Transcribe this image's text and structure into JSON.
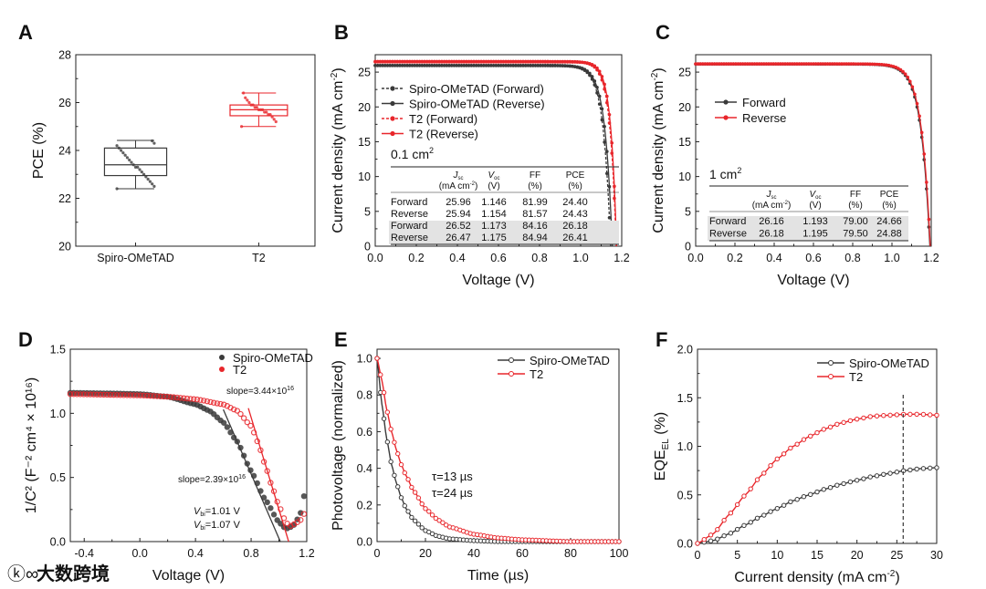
{
  "figure": {
    "watermark": "大数跨境"
  },
  "colors": {
    "black": "#3a3a3a",
    "red": "#e8262b",
    "gray_bg": "#e3e3e3"
  },
  "chart_data": [
    {
      "panel": "A",
      "type": "box",
      "ylabel": "PCE (%)",
      "xlabel": "",
      "ylim": [
        20,
        28
      ],
      "yticks": [
        "20",
        "22",
        "24",
        "26",
        "28"
      ],
      "categories": [
        "Spiro-OMeTAD",
        "T2"
      ],
      "boxes": [
        {
          "name": "Spiro-OMeTAD",
          "color": "#3a3a3a",
          "min": 22.4,
          "q1": 22.95,
          "median": 23.4,
          "q3": 24.1,
          "max": 24.42,
          "points": [
            22.4,
            22.5,
            22.6,
            22.7,
            22.8,
            22.9,
            23.0,
            23.1,
            23.2,
            23.3,
            23.3,
            23.4,
            23.5,
            23.6,
            23.7,
            23.8,
            23.9,
            24.0,
            24.1,
            24.2,
            24.3,
            24.4
          ]
        },
        {
          "name": "T2",
          "color": "#e8262b",
          "min": 25.0,
          "q1": 25.45,
          "median": 25.7,
          "q3": 25.9,
          "max": 26.4,
          "points": [
            25.0,
            25.2,
            25.3,
            25.4,
            25.5,
            25.5,
            25.6,
            25.6,
            25.7,
            25.7,
            25.7,
            25.8,
            25.8,
            25.9,
            25.9,
            26.0,
            26.1,
            26.2,
            26.4
          ]
        }
      ]
    },
    {
      "panel": "B",
      "type": "line",
      "xlabel": "Voltage (V)",
      "ylabel": "Current density (mA cm",
      "ylabel_sup": "-2",
      "ylabel_end": ")",
      "xlim": [
        0,
        1.2
      ],
      "ylim": [
        0,
        27.5
      ],
      "xticks": [
        "0.0",
        "0.2",
        "0.4",
        "0.6",
        "0.8",
        "1.0",
        "1.2"
      ],
      "yticks": [
        "0",
        "5",
        "10",
        "15",
        "20",
        "25"
      ],
      "series": [
        {
          "name": "Spiro-OMeTAD (Forward)",
          "color": "#3a3a3a",
          "dashed": true,
          "jsc": 25.96,
          "voc": 1.146,
          "n": 0.035
        },
        {
          "name": "Spiro-OMeTAD (Reverse)",
          "color": "#3a3a3a",
          "dashed": false,
          "jsc": 25.94,
          "voc": 1.154,
          "n": 0.035
        },
        {
          "name": "T2 (Forward)",
          "color": "#e8262b",
          "dashed": true,
          "jsc": 26.52,
          "voc": 1.173,
          "n": 0.03
        },
        {
          "name": "T2 (Reverse)",
          "color": "#e8262b",
          "dashed": false,
          "jsc": 26.47,
          "voc": 1.175,
          "n": 0.028
        }
      ],
      "table": {
        "area": "0.1 cm",
        "area_sup": "2",
        "headers": [
          {
            "sym": "J",
            "sub": "sc",
            "unit": "(mA cm",
            "unit_sup": "-2",
            "unit_end": ")"
          },
          {
            "sym": "V",
            "sub": "oc",
            "unit": "(V)",
            "unit_sup": "",
            "unit_end": ""
          },
          {
            "sym": "",
            "sub": "",
            "label": "FF",
            "unit": "(%)",
            "unit_sup": "",
            "unit_end": ""
          },
          {
            "sym": "",
            "sub": "",
            "label": "PCE",
            "unit": "(%)",
            "unit_sup": "",
            "unit_end": ""
          }
        ],
        "rows": [
          {
            "label": "Forward",
            "color": "#111",
            "values": [
              "25.96",
              "1.146",
              "81.99",
              "24.40"
            ]
          },
          {
            "label": "Reverse",
            "color": "#111",
            "values": [
              "25.94",
              "1.154",
              "81.57",
              "24.43"
            ]
          },
          {
            "label": "Forward",
            "color": "#e8262b",
            "values": [
              "26.52",
              "1.173",
              "84.16",
              "26.18"
            ]
          },
          {
            "label": "Reverse",
            "color": "#e8262b",
            "values": [
              "26.47",
              "1.175",
              "84.94",
              "26.41"
            ]
          }
        ]
      }
    },
    {
      "panel": "C",
      "type": "line",
      "xlabel": "Voltage (V)",
      "ylabel": "Current density (mA cm",
      "ylabel_sup": "-2",
      "ylabel_end": ")",
      "xlim": [
        0,
        1.2
      ],
      "ylim": [
        0,
        27.5
      ],
      "xticks": [
        "0.0",
        "0.2",
        "0.4",
        "0.6",
        "0.8",
        "1.0",
        "1.2"
      ],
      "yticks": [
        "0",
        "5",
        "10",
        "15",
        "20",
        "25"
      ],
      "series": [
        {
          "name": "Forward",
          "color": "#3a3a3a",
          "dashed": false,
          "jsc": 26.16,
          "voc": 1.193,
          "n": 0.045
        },
        {
          "name": "Reverse",
          "color": "#e8262b",
          "dashed": false,
          "jsc": 26.18,
          "voc": 1.195,
          "n": 0.044
        }
      ],
      "table": {
        "area": "1 cm",
        "area_sup": "2",
        "headers": [
          {
            "sym": "J",
            "sub": "sc",
            "unit": "(mA cm",
            "unit_sup": "-2",
            "unit_end": ")"
          },
          {
            "sym": "V",
            "sub": "oc",
            "unit": "(V)",
            "unit_sup": "",
            "unit_end": ""
          },
          {
            "sym": "",
            "sub": "",
            "label": "FF",
            "unit": "(%)",
            "unit_sup": "",
            "unit_end": ""
          },
          {
            "sym": "",
            "sub": "",
            "label": "PCE",
            "unit": "(%)",
            "unit_sup": "",
            "unit_end": ""
          }
        ],
        "rows": [
          {
            "label": "Forward",
            "color": "#111",
            "values": [
              "26.16",
              "1.193",
              "79.00",
              "24.66"
            ]
          },
          {
            "label": "Reverse",
            "color": "#e8262b",
            "values": [
              "26.18",
              "1.195",
              "79.50",
              "24.88"
            ]
          }
        ]
      }
    },
    {
      "panel": "D",
      "type": "scatter",
      "xlabel": "Voltage (V)",
      "ylabel": "1/C² (F⁻² cm⁴ × 10¹⁶)",
      "xlim": [
        -0.5,
        1.2
      ],
      "ylim": [
        0,
        1.5
      ],
      "xticks": [
        "-0.4",
        "0.0",
        "0.4",
        "0.8",
        "1.2"
      ],
      "xtick_values": [
        -0.4,
        0,
        0.4,
        0.8,
        1.2
      ],
      "yticks": [
        "0.0",
        "0.5",
        "1.0",
        "1.5"
      ],
      "series": [
        {
          "name": "Spiro-OMeTAD",
          "color": "#3a3a3a",
          "x": [
            -0.5,
            -0.2,
            0,
            0.2,
            0.4,
            0.5,
            0.6,
            0.7,
            0.8,
            0.9,
            1.0,
            1.05,
            1.1,
            1.15,
            1.2
          ],
          "y": [
            1.16,
            1.155,
            1.15,
            1.13,
            1.07,
            1.02,
            0.93,
            0.78,
            0.55,
            0.33,
            0.15,
            0.1,
            0.12,
            0.2,
            0.45
          ],
          "fit": {
            "x": [
              0.6,
              1.01
            ],
            "y": [
              1.03,
              0
            ]
          }
        },
        {
          "name": "T2",
          "color": "#e8262b",
          "x": [
            -0.5,
            0,
            0.2,
            0.4,
            0.6,
            0.7,
            0.8,
            0.85,
            0.9,
            0.95,
            1.0,
            1.05,
            1.08,
            1.15,
            1.2
          ],
          "y": [
            1.15,
            1.14,
            1.13,
            1.11,
            1.07,
            1.02,
            0.9,
            0.77,
            0.6,
            0.43,
            0.28,
            0.15,
            0.12,
            0.16,
            0.25
          ],
          "fit": {
            "x": [
              0.78,
              1.07
            ],
            "y": [
              1.04,
              0
            ]
          }
        }
      ],
      "annotations": {
        "slope_spiro": "slope=2.39×10",
        "slope_spiro_sup": "16",
        "slope_t2": "slope=3.44×10",
        "slope_t2_sup": "16",
        "vbi_sym": "V",
        "vbi_sub": "bi",
        "vbi_spiro": "=1.01 V",
        "vbi_t2": "=1.07 V"
      }
    },
    {
      "panel": "E",
      "type": "line",
      "xlabel": "Time (µs)",
      "ylabel": "Photovoltage (normalized)",
      "xlim": [
        0,
        100
      ],
      "ylim": [
        0,
        1.05
      ],
      "xticks": [
        "0",
        "20",
        "40",
        "60",
        "80",
        "100"
      ],
      "yticks": [
        "0.0",
        "0.2",
        "0.4",
        "0.6",
        "0.8",
        "1.0"
      ],
      "series": [
        {
          "name": "Spiro-OMeTAD",
          "color": "#3a3a3a",
          "x": [
            0,
            2,
            4,
            6,
            8,
            10,
            12,
            15,
            20,
            25,
            30,
            40,
            50,
            60,
            80,
            100
          ],
          "y": [
            1.0,
            0.75,
            0.56,
            0.42,
            0.32,
            0.24,
            0.18,
            0.12,
            0.06,
            0.03,
            0.015,
            0.005,
            0,
            0,
            0,
            0
          ]
        },
        {
          "name": "T2",
          "color": "#e8262b",
          "x": [
            0,
            2,
            4,
            6,
            8,
            10,
            12,
            15,
            20,
            25,
            30,
            40,
            50,
            60,
            80,
            100
          ],
          "y": [
            1.0,
            0.88,
            0.72,
            0.6,
            0.5,
            0.42,
            0.36,
            0.28,
            0.18,
            0.12,
            0.08,
            0.04,
            0.02,
            0.01,
            0.0,
            0.0
          ]
        }
      ],
      "annotations": {
        "tau_spiro": "τ=13 µs",
        "tau_t2": "τ=24 µs"
      }
    },
    {
      "panel": "F",
      "type": "line",
      "xlabel": "Current density (mA cm",
      "xlabel_sup": "-2",
      "xlabel_end": ")",
      "ylabel": "EQE",
      "ylabel_sub": "EL",
      "ylabel_end": " (%)",
      "xlim": [
        0,
        30
      ],
      "ylim": [
        0,
        2.0
      ],
      "xticks": [
        "0",
        "5",
        "10",
        "15",
        "20",
        "25",
        "30"
      ],
      "yticks": [
        "0.0",
        "0.5",
        "1.0",
        "1.5",
        "2.0"
      ],
      "reference_x": 25.8,
      "series": [
        {
          "name": "Spiro-OMeTAD",
          "color": "#3a3a3a",
          "x": [
            0,
            2,
            4,
            6,
            8,
            10,
            12,
            14,
            16,
            18,
            20,
            22,
            24,
            26,
            28,
            30
          ],
          "y": [
            0,
            0.03,
            0.1,
            0.19,
            0.28,
            0.36,
            0.44,
            0.5,
            0.56,
            0.61,
            0.65,
            0.69,
            0.72,
            0.75,
            0.77,
            0.78
          ]
        },
        {
          "name": "T2",
          "color": "#e8262b",
          "x": [
            0,
            2,
            4,
            6,
            8,
            10,
            12,
            14,
            16,
            18,
            20,
            22,
            24,
            26,
            28,
            30
          ],
          "y": [
            0,
            0.1,
            0.3,
            0.5,
            0.7,
            0.87,
            1.0,
            1.1,
            1.18,
            1.24,
            1.28,
            1.31,
            1.32,
            1.33,
            1.33,
            1.32
          ]
        }
      ]
    }
  ]
}
